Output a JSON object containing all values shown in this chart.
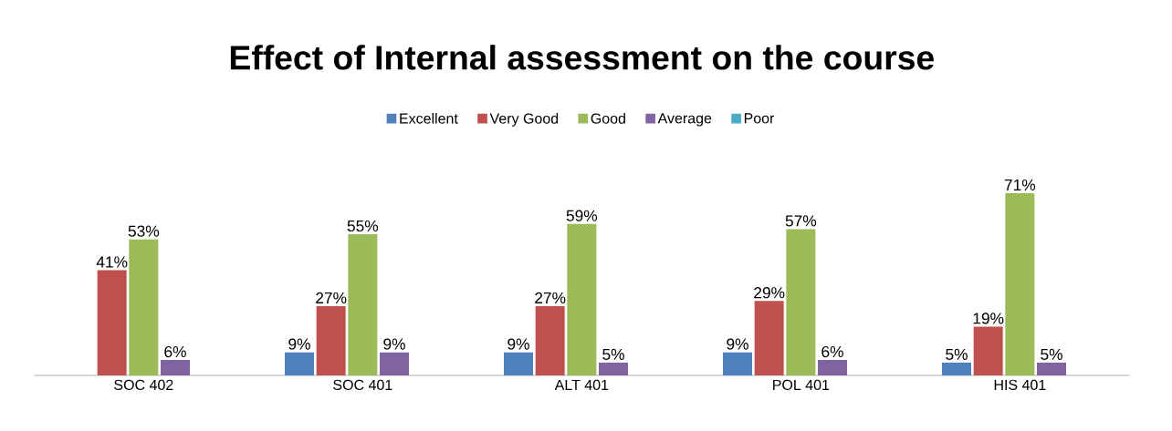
{
  "chart_data": {
    "type": "bar",
    "title": "Effect of Internal assessment on the course",
    "categories": [
      "SOC 402",
      "SOC 401",
      "ALT 401",
      "POL 401",
      "HIS 401"
    ],
    "legend": "top",
    "series": [
      {
        "name": "Excellent",
        "color": "#4f81bd",
        "values": [
          null,
          9,
          9,
          9,
          5
        ],
        "value_labels": [
          null,
          "9%",
          "9%",
          "9%",
          "5%"
        ]
      },
      {
        "name": "Very Good",
        "color": "#c0504d",
        "values": [
          41,
          27,
          27,
          29,
          19
        ],
        "value_labels": [
          "41%",
          "27%",
          "27%",
          "29%",
          "19%"
        ]
      },
      {
        "name": "Good",
        "color": "#9bbb59",
        "values": [
          53,
          55,
          59,
          57,
          71
        ],
        "value_labels": [
          "53%",
          "55%",
          "59%",
          "57%",
          "71%"
        ]
      },
      {
        "name": "Average",
        "color": "#8064a2",
        "values": [
          6,
          9,
          5,
          6,
          5
        ],
        "value_labels": [
          "6%",
          "9%",
          "5%",
          "6%",
          "5%"
        ]
      },
      {
        "name": "Poor",
        "color": "#4bacc6",
        "values": [
          null,
          null,
          null,
          null,
          null
        ]
      }
    ]
  }
}
